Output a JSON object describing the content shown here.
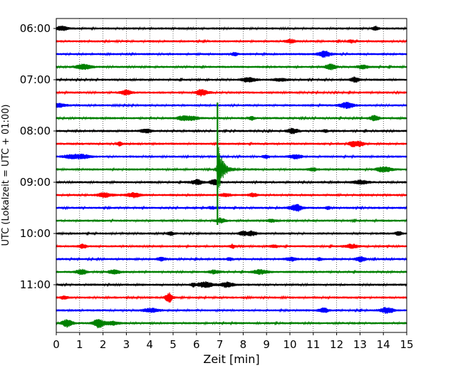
{
  "chart_data": {
    "type": "line",
    "subtype": "helicorder",
    "xlabel": "Zeit  [min]",
    "ylabel": "UTC (Lokalzeit = UTC + 01:00)",
    "xlim": [
      0,
      15
    ],
    "x_ticks": [
      "0",
      "1",
      "2",
      "3",
      "4",
      "5",
      "6",
      "7",
      "8",
      "9",
      "10",
      "11",
      "12",
      "13",
      "14",
      "15"
    ],
    "y_tick_labels": [
      "06:00",
      "07:00",
      "08:00",
      "09:00",
      "10:00",
      "11:00"
    ],
    "grid": "vertical dotted lines at each minute",
    "line_interval_minutes": 15,
    "trace_colors": [
      "#000000",
      "#ff0000",
      "#0000ff",
      "#008000"
    ],
    "traces": [
      {
        "start": "06:00"
      },
      {
        "start": "06:15"
      },
      {
        "start": "06:30"
      },
      {
        "start": "06:45"
      },
      {
        "start": "07:00"
      },
      {
        "start": "07:15"
      },
      {
        "start": "07:30"
      },
      {
        "start": "07:45"
      },
      {
        "start": "08:00"
      },
      {
        "start": "08:15"
      },
      {
        "start": "08:30"
      },
      {
        "start": "08:45"
      },
      {
        "start": "09:00"
      },
      {
        "start": "09:15"
      },
      {
        "start": "09:30"
      },
      {
        "start": "09:45"
      },
      {
        "start": "10:00"
      },
      {
        "start": "10:15"
      },
      {
        "start": "10:30"
      },
      {
        "start": "10:45"
      },
      {
        "start": "11:00"
      },
      {
        "start": "11:15"
      },
      {
        "start": "11:30"
      },
      {
        "start": "11:45"
      }
    ],
    "event": {
      "trace_start": "08:45",
      "onset_minute": 6.9,
      "decay_minutes": 1.1,
      "spans_traces": [
        "07:30",
        "09:45"
      ]
    }
  }
}
